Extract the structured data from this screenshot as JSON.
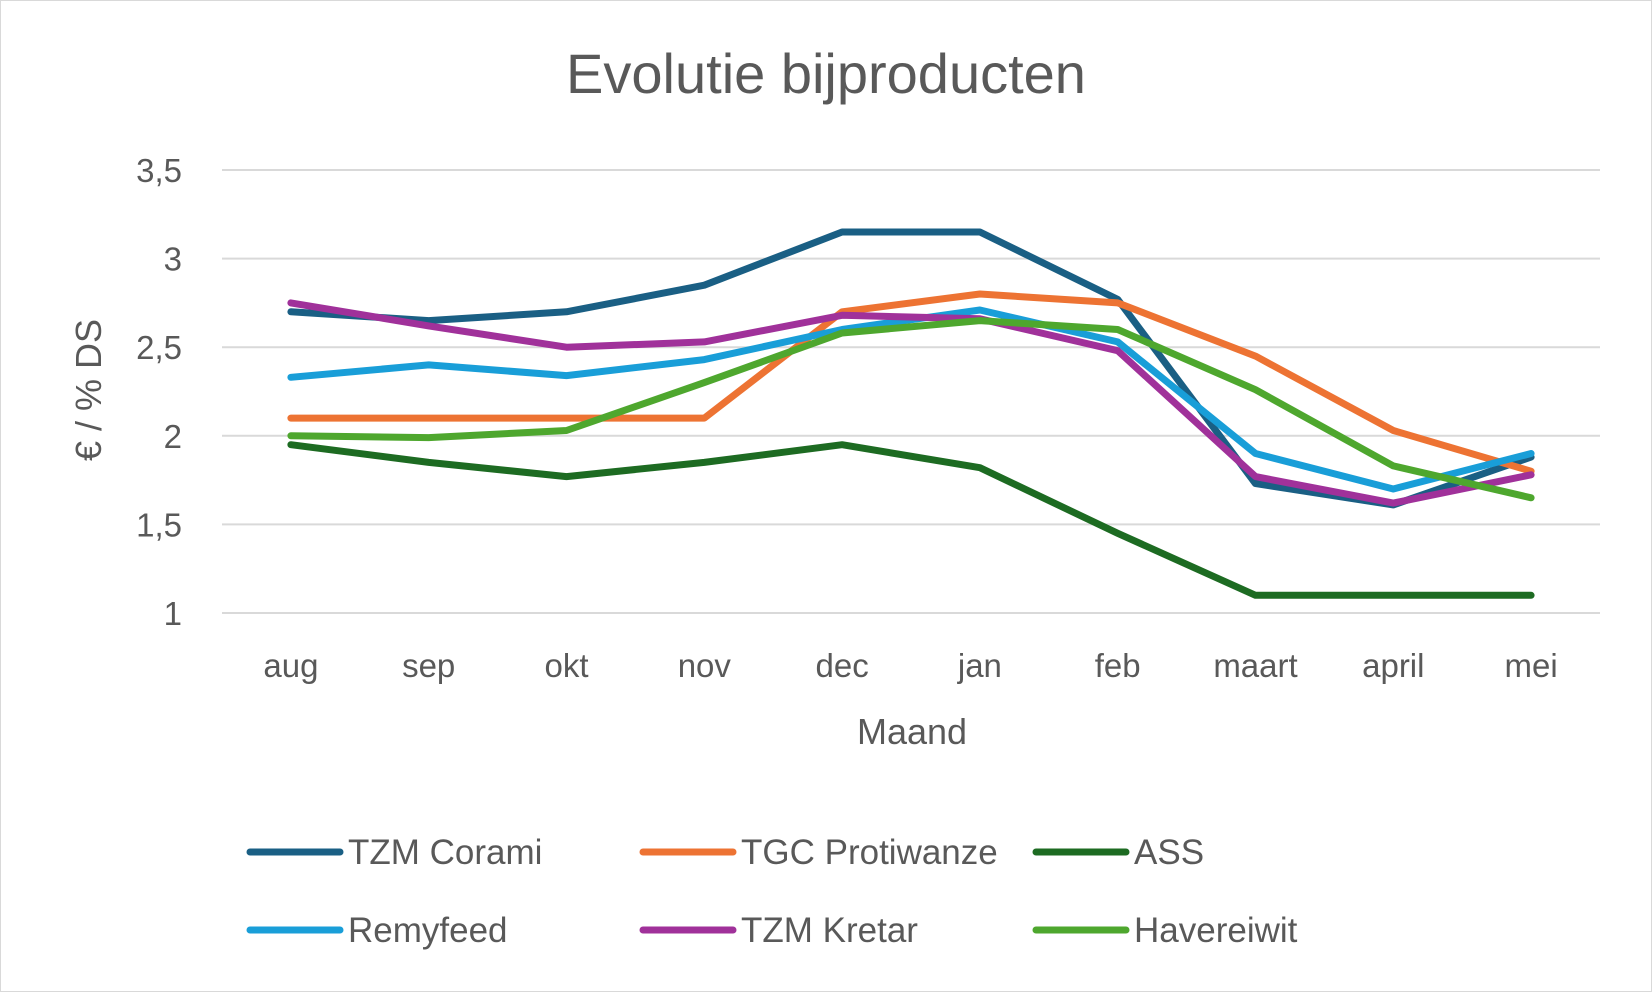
{
  "chart_data": {
    "type": "line",
    "title": "Evolutie bijproducten",
    "xlabel": "Maand",
    "ylabel": "€ / % DS",
    "categories": [
      "aug",
      "sep",
      "okt",
      "nov",
      "dec",
      "jan",
      "feb",
      "maart",
      "april",
      "mei"
    ],
    "ylim": [
      1,
      3.5
    ],
    "yticks": [
      "1",
      "1,5",
      "2",
      "2,5",
      "3",
      "3,5"
    ],
    "grid": true,
    "legend_position": "bottom",
    "series": [
      {
        "name": "TZM Corami",
        "color": "#1a5f84",
        "values": [
          2.7,
          2.65,
          2.7,
          2.85,
          3.15,
          3.15,
          2.77,
          1.73,
          1.61,
          1.88
        ]
      },
      {
        "name": "TGC Protiwanze",
        "color": "#ed7333",
        "values": [
          2.1,
          2.1,
          2.1,
          2.1,
          2.7,
          2.8,
          2.75,
          2.45,
          2.03,
          1.8
        ]
      },
      {
        "name": "ASS",
        "color": "#1d6b22",
        "values": [
          1.95,
          1.85,
          1.77,
          1.85,
          1.95,
          1.82,
          1.45,
          1.1,
          1.1,
          1.1
        ]
      },
      {
        "name": "Remyfeed",
        "color": "#199ed8",
        "values": [
          2.33,
          2.4,
          2.34,
          2.43,
          2.6,
          2.71,
          2.53,
          1.9,
          1.7,
          1.9
        ]
      },
      {
        "name": "TZM Kretar",
        "color": "#a0319a",
        "values": [
          2.75,
          2.62,
          2.5,
          2.53,
          2.68,
          2.66,
          2.48,
          1.77,
          1.62,
          1.78
        ]
      },
      {
        "name": "Havereiwit",
        "color": "#4ea72e",
        "values": [
          2.0,
          1.99,
          2.03,
          2.3,
          2.58,
          2.65,
          2.6,
          2.26,
          1.83,
          1.65
        ]
      }
    ]
  }
}
